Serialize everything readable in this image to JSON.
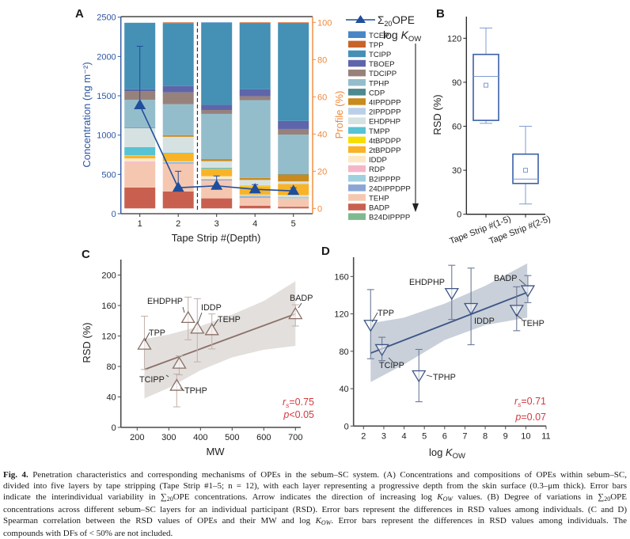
{
  "caption": {
    "lines": [
      [
        {
          "b": "Fig. 4."
        },
        {
          "t": " Penetration characteristics and corresponding mechanisms of OPEs in the sebum–SC system. (A) Concentrations and compositions of OPEs within sebum–SC,"
        }
      ],
      [
        {
          "t": "divided into five layers by tape stripping (Tape Strip #1–5; n = 12), with each layer representing a progressive depth from the skin surface (0.3–μm thick). Error bars"
        }
      ],
      [
        {
          "t": "indicate the interindividual variability in ∑"
        },
        {
          "sub": "20"
        },
        {
          "t": "OPE concentrations. Arrow indicates the direction of increasing log "
        },
        {
          "i": "K"
        },
        {
          "subi": "OW"
        },
        {
          "t": " values. (B) Degree of variations in ∑"
        },
        {
          "sub": "20"
        },
        {
          "t": "OPE"
        }
      ],
      [
        {
          "t": "concentrations across different sebum–SC layers for an individual participant (RSD). Error bars represent the differences in RSD values among individuals. (C and D)"
        }
      ],
      [
        {
          "t": "Spearman correlation between the RSD values of OPEs and their MW and log "
        },
        {
          "i": "K"
        },
        {
          "subi": "OW"
        },
        {
          "t": ". Error bars represent the differences in RSD values among individuals. The"
        }
      ],
      [
        {
          "t": "compounds with DFs of < 50% are not included."
        }
      ]
    ]
  },
  "chart_data": [
    {
      "panel_label": "A",
      "type": "bar",
      "stacked": true,
      "title": "",
      "xlabel": "Tape Strip #(Depth)",
      "ylabel": "Concentration (ng m⁻²)",
      "y2label": "Profile (%)",
      "categories": [
        "1",
        "2",
        "3",
        "4",
        "5"
      ],
      "ylim": [
        0,
        2500
      ],
      "yticks": [
        0,
        500,
        1000,
        1500,
        2000,
        2500
      ],
      "y2lim": [
        0,
        100
      ],
      "y2ticks": [
        0,
        20,
        40,
        60,
        80,
        100
      ],
      "divider": "dashed line between categories 2 and 3",
      "axis_colors": {
        "left": "#2f57a3",
        "right": "#f0883a"
      },
      "line_series": {
        "name_prefix": "Σ",
        "name_sub": "20",
        "name_suffix": "OPE",
        "axis": "left",
        "color": "#1f4e9c",
        "values": [
          1380,
          330,
          355,
          310,
          290
        ],
        "error_upper": [
          2130,
          540,
          480,
          370,
          330
        ]
      },
      "legend_annotation": {
        "text": "log ",
        "italic": "K",
        "sub": "OW",
        "arrow": "down"
      },
      "series": [
        {
          "name": "TCEP",
          "color": "#4a86c6",
          "values": [
            0,
            0,
            0.3,
            0,
            0
          ]
        },
        {
          "name": "TPP",
          "color": "#c8642a",
          "values": [
            0,
            0.4,
            0,
            0.7,
            0.7
          ]
        },
        {
          "name": "TCIPP",
          "color": "#4590b5",
          "values": [
            35.7,
            33.8,
            44.0,
            35.3,
            52.3
          ]
        },
        {
          "name": "TBOEP",
          "color": "#5f65aa",
          "values": [
            1.0,
            3.4,
            2.8,
            3.7,
            4.3
          ]
        },
        {
          "name": "TDCIPP",
          "color": "#97827b",
          "values": [
            4.7,
            6.4,
            2.1,
            2.1,
            3.0
          ]
        },
        {
          "name": "TPHP",
          "color": "#94bdcc",
          "values": [
            15.0,
            16.6,
            24.3,
            41.8,
            21.3
          ]
        },
        {
          "name": "CDP",
          "color": "#4d8a8f",
          "values": [
            0.3,
            0,
            0,
            0,
            0.2
          ]
        },
        {
          "name": "4IPPDPP",
          "color": "#c98a1e",
          "values": [
            0,
            0.9,
            1.1,
            1.1,
            3.7
          ]
        },
        {
          "name": "2IPPDPP",
          "color": "#bbd0e8",
          "values": [
            0,
            0,
            0,
            0,
            0
          ]
        },
        {
          "name": "EHDPHP",
          "color": "#d6e2e1",
          "values": [
            10.2,
            8.5,
            3.5,
            2.8,
            1.4
          ]
        },
        {
          "name": "TMPP",
          "color": "#58c3d3",
          "values": [
            4.3,
            0.4,
            0.6,
            0,
            0
          ]
        },
        {
          "name": "4tBPDPP",
          "color": "#f8de00",
          "values": [
            0.4,
            0,
            0,
            0.6,
            0
          ]
        },
        {
          "name": "2tBPDPP",
          "color": "#f9b328",
          "values": [
            1.3,
            4.3,
            4.0,
            4.5,
            6.0
          ]
        },
        {
          "name": "IDDP",
          "color": "#fde8c6",
          "values": [
            1.7,
            0.3,
            1.4,
            0.3,
            0.7
          ]
        },
        {
          "name": "RDP",
          "color": "#f5b6c9",
          "values": [
            0.7,
            0,
            0,
            0,
            0
          ]
        },
        {
          "name": "B2IPPPP",
          "color": "#9fd0e0",
          "values": [
            0,
            0.4,
            0.4,
            0.7,
            1.0
          ]
        },
        {
          "name": "24DIPPDPP",
          "color": "#8ba6d6",
          "values": [
            0,
            0.5,
            0.5,
            0.7,
            0
          ]
        },
        {
          "name": "TEHP",
          "color": "#f5c7b1",
          "values": [
            13.3,
            15.0,
            9.6,
            4.3,
            4.5
          ]
        },
        {
          "name": "BADP",
          "color": "#c9604f",
          "values": [
            11.2,
            9.1,
            5.4,
            1.4,
            0.9
          ]
        },
        {
          "name": "B24DIPPPP",
          "color": "#7eb98f",
          "values": [
            0,
            0,
            0,
            0,
            0
          ]
        }
      ]
    },
    {
      "panel_label": "B",
      "type": "box",
      "title": "",
      "xlabel": "",
      "ylabel": "RSD (%)",
      "ylim": [
        0,
        135
      ],
      "yticks": [
        0,
        30,
        60,
        90,
        120
      ],
      "categories": [
        "Tape Strip #(1-5)",
        "Tape Strip #(2-5)"
      ],
      "color": "#3a60a8",
      "whisker_color": "#7f9ccf",
      "boxes": [
        {
          "whisker_low": 62,
          "q1": 64,
          "median": 94,
          "q3": 109,
          "whisker_high": 127,
          "mean": 88
        },
        {
          "whisker_low": 7,
          "q1": 21,
          "median": 24,
          "q3": 41,
          "whisker_high": 60,
          "mean": 30
        }
      ]
    },
    {
      "panel_label": "C",
      "type": "scatter",
      "title": "",
      "xlabel": "MW",
      "ylabel": "RSD (%)",
      "xlim": [
        148,
        717
      ],
      "ylim": [
        0,
        220
      ],
      "xticks": [
        200,
        300,
        400,
        500,
        600,
        700
      ],
      "yticks": [
        0,
        40,
        80,
        120,
        160,
        200
      ],
      "marker": "triangle-up",
      "color": "#8a7068",
      "band_color": "#e3dfdc",
      "points": [
        {
          "label": "TPP",
          "x": 223,
          "y": 109,
          "err_low": 76,
          "err_high": 146
        },
        {
          "label": "TCIPP",
          "x": 333,
          "y": 84,
          "err_low": 69,
          "err_high": 94
        },
        {
          "label": "TPHP",
          "x": 325,
          "y": 55,
          "err_low": 27,
          "err_high": 70
        },
        {
          "label": "EHDPHP",
          "x": 361,
          "y": 144,
          "err_low": 115,
          "err_high": 171
        },
        {
          "label": "IDDP",
          "x": 390,
          "y": 130,
          "err_low": 86,
          "err_high": 169
        },
        {
          "label": "TEHP",
          "x": 436,
          "y": 128,
          "err_low": 103,
          "err_high": 149
        },
        {
          "label": "BADP",
          "x": 700,
          "y": 149,
          "err_low": 133,
          "err_high": 161
        }
      ],
      "fit": {
        "x": [
          223,
          700
        ],
        "y": [
          76,
          149
        ]
      },
      "ci_band": {
        "x": [
          223,
          300,
          400,
          500,
          600,
          700
        ],
        "upper": [
          116,
          122,
          133,
          148,
          166,
          192
        ],
        "lower": [
          38,
          52,
          75,
          92,
          102,
          107
        ]
      },
      "stats": {
        "rs_symbol": "r",
        "rs_sub": "s",
        "rs_value": "=0.75",
        "p_symbol": "p",
        "p_value": "<0.05",
        "color": "#d23a3f"
      }
    },
    {
      "panel_label": "D",
      "type": "scatter",
      "title": "",
      "xlabel": {
        "text": "log ",
        "italic": "K",
        "sub": "OW"
      },
      "ylabel": "",
      "xlim": [
        1.5,
        11
      ],
      "ylim": [
        0,
        180
      ],
      "xticks": [
        2,
        3,
        4,
        5,
        6,
        7,
        8,
        9,
        10,
        11
      ],
      "yticks": [
        0,
        40,
        80,
        120,
        160
      ],
      "marker": "triangle-down",
      "color": "#3d5585",
      "band_color": "#c9d0da",
      "points": [
        {
          "label": "TPP",
          "x": 2.35,
          "y": 108,
          "err_low": 72,
          "err_high": 146
        },
        {
          "label": "TCIPP",
          "x": 2.91,
          "y": 82,
          "err_low": 70,
          "err_high": 95
        },
        {
          "label": "TPHP",
          "x": 4.73,
          "y": 54,
          "err_low": 26,
          "err_high": 82
        },
        {
          "label": "EHDPHP",
          "x": 6.35,
          "y": 142,
          "err_low": 114,
          "err_high": 172
        },
        {
          "label": "IDDP",
          "x": 7.3,
          "y": 126,
          "err_low": 87,
          "err_high": 169
        },
        {
          "label": "TEHP",
          "x": 9.55,
          "y": 124,
          "err_low": 102,
          "err_high": 149
        },
        {
          "label": "BADP",
          "x": 10.1,
          "y": 145,
          "err_low": 132,
          "err_high": 161
        }
      ],
      "fit": {
        "x": [
          2.35,
          10.07
        ],
        "y": [
          78,
          143
        ]
      },
      "ci_band": {
        "x": [
          2.35,
          4,
          6,
          8,
          10.07
        ],
        "upper": [
          110,
          116,
          131,
          150,
          174
        ],
        "lower": [
          47,
          66,
          92,
          108,
          116
        ]
      },
      "stats": {
        "rs_symbol": "r",
        "rs_sub": "s",
        "rs_value": "=0.71",
        "p_symbol": "p",
        "p_value": "=0.07",
        "color": "#d23a3f"
      }
    }
  ]
}
